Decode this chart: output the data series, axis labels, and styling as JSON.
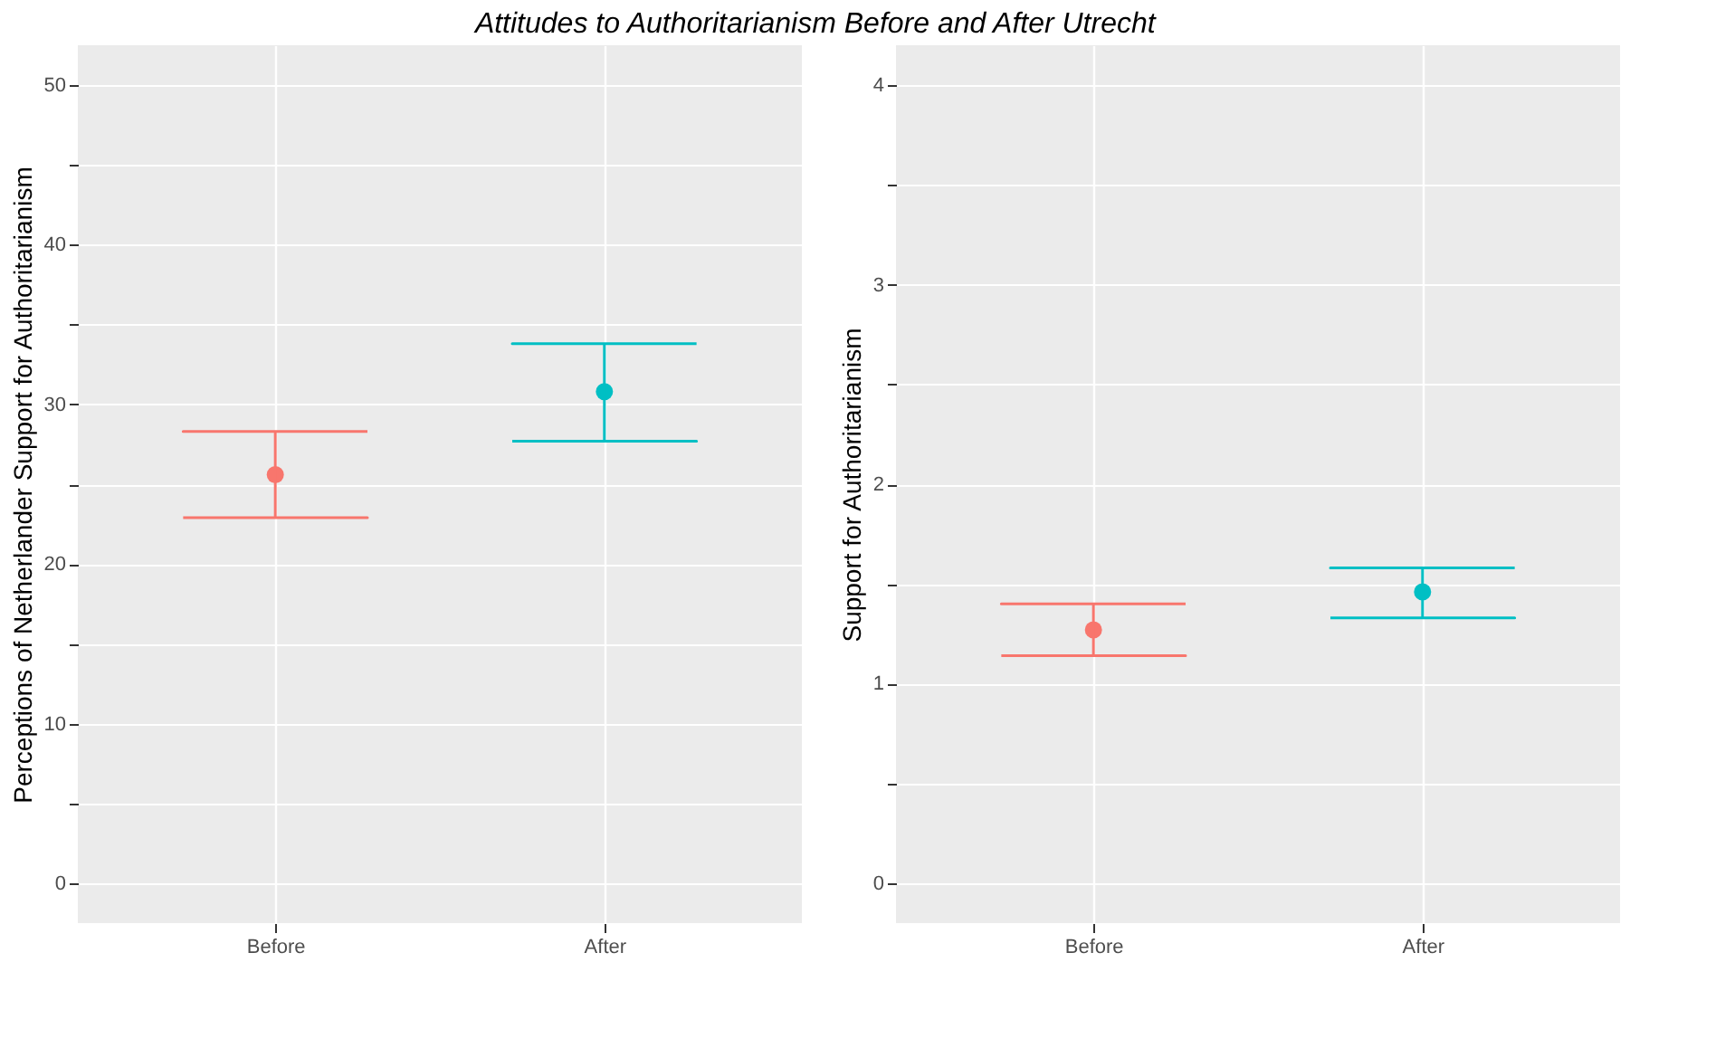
{
  "chart_data": [
    {
      "type": "scatter",
      "title": "Attitudes to Authoritarianism Before and After Utrecht",
      "categories": [
        "Before",
        "After"
      ],
      "values": [
        25.6,
        30.8
      ],
      "errors": [
        [
          22.9,
          28.3
        ],
        [
          27.7,
          33.8
        ]
      ],
      "colors": [
        "#f8766d",
        "#00bfc4"
      ],
      "ylabel": "Perceptions of Netherlander Support for Authoritarianism",
      "ylim": [
        -2.5,
        52.5
      ],
      "yticks": [
        0,
        {
          "value": 5,
          "label": null
        },
        10,
        {
          "value": 15,
          "label": null
        },
        20,
        {
          "value": 25,
          "label": null
        },
        30,
        {
          "value": 35,
          "label": null
        },
        40,
        {
          "value": 45,
          "label": null
        },
        50
      ],
      "grid": true,
      "marker": "circle"
    },
    {
      "type": "scatter",
      "categories": [
        "Before",
        "After"
      ],
      "values": [
        1.27,
        1.46
      ],
      "errors": [
        [
          1.14,
          1.4
        ],
        [
          1.33,
          1.58
        ]
      ],
      "colors": [
        "#f8766d",
        "#00bfc4"
      ],
      "ylabel": "Support for Authoritarianism",
      "ylim": [
        -0.2,
        4.2
      ],
      "yticks": [
        0,
        {
          "value": 0.5,
          "label": null
        },
        1,
        {
          "value": 1.5,
          "label": null
        },
        2,
        {
          "value": 2.5,
          "label": null
        },
        3,
        {
          "value": 3.5,
          "label": null
        },
        4
      ],
      "grid": true,
      "marker": "circle"
    }
  ]
}
